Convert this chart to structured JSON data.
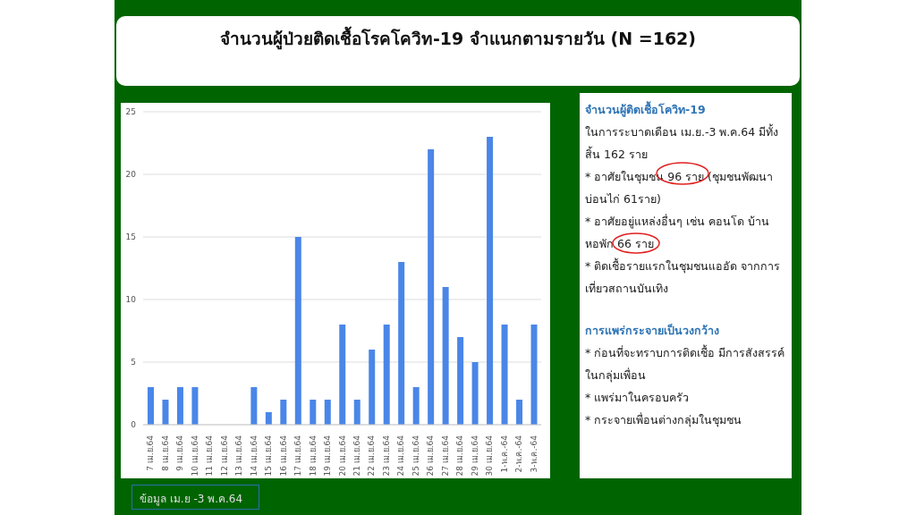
{
  "chart_data": {
    "type": "bar",
    "title": "จำนวนผู้ป่วยติดเชื้อโรคโควิท-19 จำแนกตามรายวัน (N =162)",
    "categories": [
      "7 เม.ย.64",
      "8 เม.ย.64",
      "9 เม.ย.64",
      "10 เม.ย.64",
      "11 เม.ย.64",
      "12 เม.ย.64",
      "13 เม.ย.64",
      "14 เม.ย.64",
      "15 เม.ย.64",
      "16 เม.ย.64",
      "17 เม.ย.64",
      "18 เม.ย.64",
      "19 เม.ย.64",
      "20 เม.ย.64",
      "21 เม.ย.64",
      "22 เม.ย.64",
      "23 เม.ย.64",
      "24 เม.ย.64",
      "25 เม.ย.64",
      "26 เม.ย.64",
      "27 เม.ย.64",
      "28 เม.ย.64",
      "29 เม.ย.64",
      "30 เม.ย.64",
      "1-พ.ค.-64",
      "2-พ.ค.-64",
      "3-พ.ค.-64"
    ],
    "values": [
      3,
      2,
      3,
      3,
      0,
      0,
      0,
      3,
      1,
      2,
      15,
      2,
      2,
      8,
      2,
      6,
      8,
      13,
      3,
      22,
      11,
      7,
      5,
      23,
      8,
      2,
      8
    ],
    "color": "#4a86e8",
    "ylim": [
      0,
      25
    ],
    "yticks": [
      0,
      5,
      10,
      15,
      20,
      25
    ],
    "grid": "y",
    "annotations": [
      "จำนวนผู้ติดเชื้อโควิท-19",
      "ในการระบาดเดือน เม.ย.-3 พ.ค.64  มีทั้งสิ้น 162 ราย",
      "* อาศัยในชุมชน 96 ราย (ชุมชนพัฒนาบ่อนไก่ 61ราย)",
      "* อาศัยอยู่แหล่งอื่นๆ เช่น คอนโด บ้านหอพัก 66 ราย",
      "* ติดเชื้อรายแรกในชุมชนแออัด จากการเที่ยวสถานบันเทิง",
      "การแพร่กระจายเป็นวงกว้าง",
      " * ก่อนที่จะทราบการติดเชื้อ มีการสังสรรค์ในกลุ่มเพื่อน",
      "* แพร่มาในครอบครัว",
      "* กระจายเพื่อนต่างกลุ่มในชุมชน",
      "ข้อมูล เม.ย -3 พ.ค.64"
    ]
  }
}
